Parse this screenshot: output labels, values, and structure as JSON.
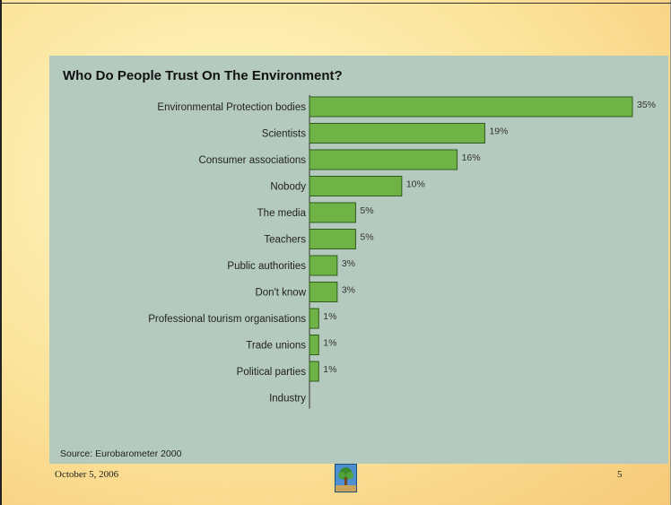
{
  "slide": {
    "footer_date": "October 5, 2006",
    "page_number": "5",
    "background_color": "#fbe39a",
    "logo_icon": "tree-logo-icon"
  },
  "chart_data": {
    "type": "bar",
    "orientation": "horizontal",
    "title": "Who Do People Trust On The Environment?",
    "source": "Source: Eurobarometer 2000",
    "categories": [
      "Environmental Protection bodies",
      "Scientists",
      "Consumer associations",
      "Nobody",
      "The media",
      "Teachers",
      "Public authorities",
      "Don't know",
      "Professional tourism organisations",
      "Trade unions",
      "Political parties",
      "Industry"
    ],
    "values": [
      35,
      19,
      16,
      10,
      5,
      5,
      3,
      3,
      1,
      1,
      1,
      0
    ],
    "labels": [
      "35%",
      "19%",
      "16%",
      "10%",
      "5%",
      "5%",
      "3%",
      "3%",
      "1%",
      "1%",
      "1%",
      ""
    ],
    "xlim": [
      0,
      35
    ],
    "bar_color": "#6fb346",
    "grid": false,
    "legend": "none"
  }
}
